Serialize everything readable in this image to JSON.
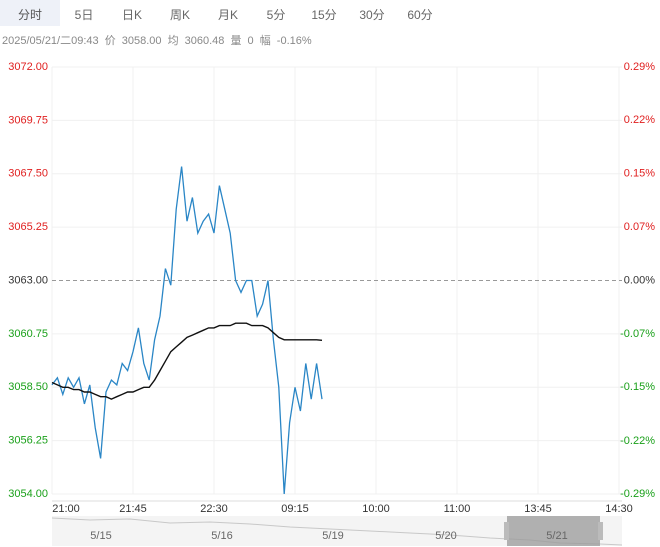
{
  "tabs": [
    "分时",
    "5日",
    "日K",
    "周K",
    "月K",
    "5分",
    "15分",
    "30分",
    "60分"
  ],
  "info": {
    "datetime": "2025/05/21/二09:43",
    "price_label": "价",
    "price": "3058.00",
    "avg_label": "均",
    "avg": "3060.48",
    "vol_label": "量",
    "vol": "0",
    "amp_label": "幅",
    "amp": "-0.16%"
  },
  "navigator": {
    "dates": [
      "5/15",
      "5/16",
      "5/19",
      "5/20",
      "5/21"
    ]
  },
  "chart_data": {
    "type": "line",
    "categories": [
      "21:00",
      null,
      null,
      null,
      null,
      null,
      null,
      null,
      null,
      null,
      null,
      null,
      null,
      null,
      null,
      "21:45",
      null,
      null,
      null,
      null,
      null,
      null,
      null,
      null,
      null,
      null,
      null,
      null,
      null,
      null,
      "22:30",
      null,
      null,
      null,
      null,
      null,
      null,
      null,
      null,
      null,
      null,
      null,
      null,
      null,
      null,
      "09:15",
      null,
      null,
      null,
      null,
      null,
      null,
      null,
      null,
      null,
      null,
      null,
      null,
      null,
      null,
      "10:00",
      null,
      null,
      null,
      null,
      null,
      null,
      null,
      null,
      null,
      null,
      null,
      null,
      null,
      null,
      "11:00",
      null,
      null,
      null,
      null,
      null,
      null,
      null,
      null,
      null,
      null,
      null,
      null,
      null,
      null,
      "13:45",
      null,
      null,
      null,
      null,
      null,
      null,
      null,
      null,
      null,
      null,
      null,
      null,
      null,
      null,
      "14:30"
    ],
    "series": [
      {
        "color": "#2a86c6",
        "values": [
          3058.6,
          3058.9,
          3058.2,
          3058.9,
          3058.5,
          3058.9,
          3057.8,
          3058.6,
          3056.8,
          3055.5,
          3058.3,
          3058.8,
          3058.6,
          3059.5,
          3059.2,
          3060.0,
          3061.0,
          3059.5,
          3058.8,
          3060.5,
          3061.5,
          3063.5,
          3062.8,
          3066.0,
          3067.8,
          3065.5,
          3066.5,
          3065.0,
          3065.5,
          3065.8,
          3065.0,
          3067.0,
          3066.0,
          3065.0,
          3063.0,
          3062.5,
          3063.0,
          3063.0,
          3061.5,
          3062.0,
          3063.0,
          3060.5,
          3058.5,
          3054.0,
          3057.0,
          3058.5,
          3057.5,
          3059.5,
          3058.0,
          3059.5,
          3058.0,
          null,
          null,
          null,
          null,
          null,
          null,
          null,
          null,
          null,
          null,
          null,
          null,
          null,
          null,
          null,
          null,
          null,
          null,
          null,
          null,
          null,
          null,
          null,
          null,
          null,
          null,
          null,
          null,
          null,
          null,
          null,
          null,
          null,
          null,
          null,
          null,
          null,
          null,
          null,
          null,
          null,
          null,
          null,
          null,
          null,
          null,
          null,
          null,
          null,
          null,
          null,
          null,
          null,
          null,
          null
        ]
      },
      {
        "color": "#111111",
        "values": [
          3058.7,
          3058.6,
          3058.5,
          3058.5,
          3058.4,
          3058.4,
          3058.3,
          3058.3,
          3058.2,
          3058.1,
          3058.1,
          3058.0,
          3058.1,
          3058.2,
          3058.3,
          3058.3,
          3058.4,
          3058.5,
          3058.5,
          3058.8,
          3059.2,
          3059.6,
          3060.0,
          3060.2,
          3060.4,
          3060.6,
          3060.7,
          3060.8,
          3060.9,
          3061.0,
          3061.0,
          3061.1,
          3061.1,
          3061.1,
          3061.2,
          3061.2,
          3061.2,
          3061.1,
          3061.1,
          3061.1,
          3061.0,
          3060.8,
          3060.6,
          3060.5,
          3060.5,
          3060.5,
          3060.5,
          3060.5,
          3060.5,
          3060.5,
          3060.48,
          null,
          null,
          null,
          null,
          null,
          null,
          null,
          null,
          null,
          null,
          null,
          null,
          null,
          null,
          null,
          null,
          null,
          null,
          null,
          null,
          null,
          null,
          null,
          null,
          null,
          null,
          null,
          null,
          null,
          null,
          null,
          null,
          null,
          null,
          null,
          null,
          null,
          null,
          null,
          null,
          null,
          null,
          null,
          null,
          null,
          null,
          null,
          null,
          null,
          null,
          null,
          null,
          null,
          null,
          null
        ]
      }
    ],
    "ylim": [
      3054,
      3072
    ],
    "yticks": [
      {
        "value": 3072,
        "label": "3072.00"
      },
      3069.75,
      {
        "value": 3067.5,
        "label": "3067.50"
      },
      3065.25,
      {
        "value": 3063,
        "label": "3063.00"
      },
      3060.75,
      {
        "value": 3058.5,
        "label": "3058.50"
      },
      3056.25,
      {
        "value": 3054,
        "label": "3054.00"
      }
    ],
    "y2lim": [
      -0.294,
      0.294
    ],
    "y2ticks": [
      {
        "value": 0.294,
        "label": "0.29%"
      },
      {
        "value": 0.221,
        "label": "0.22%"
      },
      {
        "value": 0.147,
        "label": "0.15%"
      },
      {
        "value": 0.0735,
        "label": "0.07%"
      },
      {
        "value": 0,
        "label": "0.00%"
      },
      {
        "value": -0.0735,
        "label": "-0.07%"
      },
      {
        "value": -0.147,
        "label": "-0.15%"
      },
      {
        "value": -0.221,
        "label": "-0.22%"
      },
      {
        "value": -0.294,
        "label": "-0.29%"
      }
    ],
    "grid": true,
    "up_color": "#e02020",
    "down_color": "#1aa01a",
    "flat_color": "#333333"
  }
}
